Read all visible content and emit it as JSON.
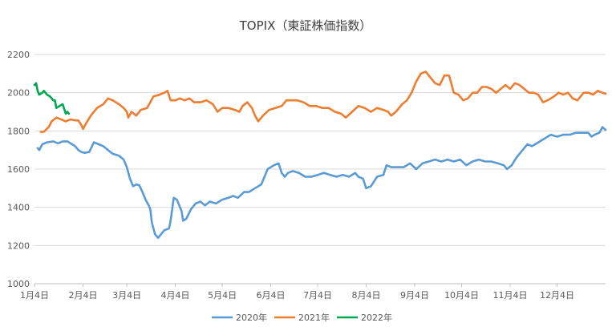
{
  "chart_data": {
    "type": "line",
    "title": "TOPIX（東証株価指数）",
    "xlabel": "",
    "ylabel": "",
    "ylim": [
      1000,
      2200
    ],
    "yticks": [
      "1000",
      "1200",
      "1400",
      "1600",
      "1800",
      "2000",
      "2200"
    ],
    "xlim": [
      0,
      365
    ],
    "xtick_labels": [
      "1月4日",
      "2月4日",
      "3月4日",
      "4月4日",
      "5月4日",
      "6月4日",
      "7月4日",
      "8月4日",
      "9月4日",
      "10月4日",
      "11月4日",
      "12月4日"
    ],
    "xtick_days": [
      0,
      31,
      59,
      90,
      120,
      151,
      181,
      212,
      243,
      273,
      304,
      334
    ],
    "grid": true,
    "legend_position": "bottom",
    "series": [
      {
        "name": "2020年",
        "color": "#5b9bd5",
        "points": [
          [
            2,
            1710
          ],
          [
            3,
            1700
          ],
          [
            5,
            1730
          ],
          [
            8,
            1740
          ],
          [
            12,
            1745
          ],
          [
            15,
            1735
          ],
          [
            18,
            1745
          ],
          [
            21,
            1745
          ],
          [
            24,
            1730
          ],
          [
            26,
            1720
          ],
          [
            28,
            1700
          ],
          [
            30,
            1690
          ],
          [
            32,
            1685
          ],
          [
            35,
            1690
          ],
          [
            38,
            1740
          ],
          [
            41,
            1730
          ],
          [
            44,
            1720
          ],
          [
            47,
            1700
          ],
          [
            50,
            1680
          ],
          [
            54,
            1670
          ],
          [
            57,
            1650
          ],
          [
            59,
            1610
          ],
          [
            61,
            1550
          ],
          [
            63,
            1510
          ],
          [
            65,
            1520
          ],
          [
            67,
            1515
          ],
          [
            69,
            1480
          ],
          [
            71,
            1440
          ],
          [
            73,
            1410
          ],
          [
            74,
            1390
          ],
          [
            75,
            1320
          ],
          [
            77,
            1260
          ],
          [
            79,
            1240
          ],
          [
            81,
            1260
          ],
          [
            83,
            1280
          ],
          [
            86,
            1290
          ],
          [
            87,
            1330
          ],
          [
            89,
            1450
          ],
          [
            91,
            1440
          ],
          [
            92,
            1420
          ],
          [
            94,
            1380
          ],
          [
            95,
            1330
          ],
          [
            97,
            1340
          ],
          [
            100,
            1390
          ],
          [
            103,
            1420
          ],
          [
            106,
            1430
          ],
          [
            109,
            1410
          ],
          [
            112,
            1430
          ],
          [
            116,
            1420
          ],
          [
            120,
            1440
          ],
          [
            124,
            1450
          ],
          [
            127,
            1460
          ],
          [
            130,
            1450
          ],
          [
            134,
            1480
          ],
          [
            137,
            1480
          ],
          [
            141,
            1500
          ],
          [
            145,
            1520
          ],
          [
            149,
            1600
          ],
          [
            153,
            1620
          ],
          [
            156,
            1630
          ],
          [
            158,
            1580
          ],
          [
            160,
            1560
          ],
          [
            162,
            1580
          ],
          [
            165,
            1590
          ],
          [
            169,
            1580
          ],
          [
            173,
            1560
          ],
          [
            177,
            1560
          ],
          [
            181,
            1570
          ],
          [
            185,
            1580
          ],
          [
            189,
            1570
          ],
          [
            193,
            1560
          ],
          [
            197,
            1570
          ],
          [
            201,
            1560
          ],
          [
            205,
            1580
          ],
          [
            207,
            1560
          ],
          [
            210,
            1550
          ],
          [
            212,
            1500
          ],
          [
            215,
            1510
          ],
          [
            219,
            1560
          ],
          [
            223,
            1570
          ],
          [
            225,
            1620
          ],
          [
            228,
            1610
          ],
          [
            232,
            1610
          ],
          [
            236,
            1610
          ],
          [
            240,
            1630
          ],
          [
            244,
            1600
          ],
          [
            248,
            1630
          ],
          [
            252,
            1640
          ],
          [
            256,
            1650
          ],
          [
            260,
            1640
          ],
          [
            264,
            1650
          ],
          [
            268,
            1640
          ],
          [
            272,
            1650
          ],
          [
            276,
            1620
          ],
          [
            280,
            1640
          ],
          [
            284,
            1650
          ],
          [
            288,
            1640
          ],
          [
            292,
            1640
          ],
          [
            296,
            1630
          ],
          [
            300,
            1620
          ],
          [
            302,
            1600
          ],
          [
            305,
            1620
          ],
          [
            308,
            1660
          ],
          [
            312,
            1700
          ],
          [
            315,
            1730
          ],
          [
            318,
            1720
          ],
          [
            322,
            1740
          ],
          [
            326,
            1760
          ],
          [
            330,
            1780
          ],
          [
            334,
            1770
          ],
          [
            338,
            1780
          ],
          [
            342,
            1780
          ],
          [
            346,
            1790
          ],
          [
            350,
            1790
          ],
          [
            354,
            1790
          ],
          [
            356,
            1770
          ],
          [
            358,
            1780
          ],
          [
            361,
            1790
          ],
          [
            363,
            1820
          ],
          [
            365,
            1805
          ]
        ]
      },
      {
        "name": "2021年",
        "color": "#ed7d31",
        "points": [
          [
            4,
            1795
          ],
          [
            6,
            1795
          ],
          [
            9,
            1820
          ],
          [
            11,
            1850
          ],
          [
            14,
            1870
          ],
          [
            17,
            1860
          ],
          [
            20,
            1850
          ],
          [
            23,
            1860
          ],
          [
            26,
            1855
          ],
          [
            28,
            1855
          ],
          [
            30,
            1830
          ],
          [
            31,
            1810
          ],
          [
            33,
            1840
          ],
          [
            36,
            1880
          ],
          [
            40,
            1920
          ],
          [
            44,
            1940
          ],
          [
            47,
            1970
          ],
          [
            50,
            1960
          ],
          [
            54,
            1940
          ],
          [
            57,
            1920
          ],
          [
            59,
            1900
          ],
          [
            60,
            1870
          ],
          [
            62,
            1900
          ],
          [
            65,
            1880
          ],
          [
            68,
            1910
          ],
          [
            72,
            1920
          ],
          [
            76,
            1980
          ],
          [
            80,
            1990
          ],
          [
            83,
            2000
          ],
          [
            85,
            2010
          ],
          [
            87,
            1960
          ],
          [
            90,
            1960
          ],
          [
            93,
            1970
          ],
          [
            96,
            1960
          ],
          [
            99,
            1970
          ],
          [
            102,
            1950
          ],
          [
            106,
            1950
          ],
          [
            110,
            1960
          ],
          [
            114,
            1940
          ],
          [
            117,
            1900
          ],
          [
            120,
            1920
          ],
          [
            124,
            1920
          ],
          [
            128,
            1910
          ],
          [
            131,
            1900
          ],
          [
            133,
            1930
          ],
          [
            136,
            1950
          ],
          [
            139,
            1920
          ],
          [
            141,
            1880
          ],
          [
            143,
            1850
          ],
          [
            146,
            1880
          ],
          [
            150,
            1910
          ],
          [
            154,
            1920
          ],
          [
            158,
            1930
          ],
          [
            161,
            1960
          ],
          [
            164,
            1960
          ],
          [
            168,
            1960
          ],
          [
            172,
            1950
          ],
          [
            176,
            1930
          ],
          [
            180,
            1930
          ],
          [
            184,
            1920
          ],
          [
            188,
            1920
          ],
          [
            192,
            1900
          ],
          [
            196,
            1890
          ],
          [
            199,
            1870
          ],
          [
            203,
            1900
          ],
          [
            207,
            1930
          ],
          [
            211,
            1920
          ],
          [
            215,
            1900
          ],
          [
            219,
            1920
          ],
          [
            223,
            1910
          ],
          [
            226,
            1900
          ],
          [
            228,
            1880
          ],
          [
            231,
            1900
          ],
          [
            235,
            1940
          ],
          [
            238,
            1960
          ],
          [
            241,
            2000
          ],
          [
            244,
            2060
          ],
          [
            247,
            2100
          ],
          [
            250,
            2110
          ],
          [
            253,
            2080
          ],
          [
            256,
            2050
          ],
          [
            259,
            2040
          ],
          [
            262,
            2090
          ],
          [
            265,
            2090
          ],
          [
            268,
            2000
          ],
          [
            271,
            1990
          ],
          [
            274,
            1960
          ],
          [
            277,
            1970
          ],
          [
            280,
            2000
          ],
          [
            283,
            2000
          ],
          [
            286,
            2030
          ],
          [
            289,
            2030
          ],
          [
            292,
            2020
          ],
          [
            295,
            2000
          ],
          [
            298,
            2020
          ],
          [
            301,
            2040
          ],
          [
            304,
            2020
          ],
          [
            307,
            2050
          ],
          [
            310,
            2040
          ],
          [
            313,
            2020
          ],
          [
            316,
            2000
          ],
          [
            319,
            2000
          ],
          [
            322,
            1990
          ],
          [
            325,
            1950
          ],
          [
            328,
            1960
          ],
          [
            332,
            1980
          ],
          [
            335,
            2000
          ],
          [
            338,
            1990
          ],
          [
            341,
            2000
          ],
          [
            344,
            1970
          ],
          [
            347,
            1960
          ],
          [
            349,
            1980
          ],
          [
            351,
            2000
          ],
          [
            354,
            2000
          ],
          [
            357,
            1990
          ],
          [
            360,
            2010
          ],
          [
            363,
            2000
          ],
          [
            365,
            1995
          ]
        ]
      },
      {
        "name": "2022年",
        "color": "#00a650",
        "points": [
          [
            0,
            2040
          ],
          [
            1,
            2050
          ],
          [
            2,
            2010
          ],
          [
            3,
            1990
          ],
          [
            5,
            2000
          ],
          [
            6,
            2010
          ],
          [
            8,
            1990
          ],
          [
            10,
            1980
          ],
          [
            12,
            1960
          ],
          [
            13,
            1960
          ],
          [
            14,
            1920
          ],
          [
            16,
            1930
          ],
          [
            18,
            1940
          ],
          [
            20,
            1890
          ],
          [
            21,
            1900
          ],
          [
            22,
            1890
          ]
        ]
      }
    ]
  }
}
